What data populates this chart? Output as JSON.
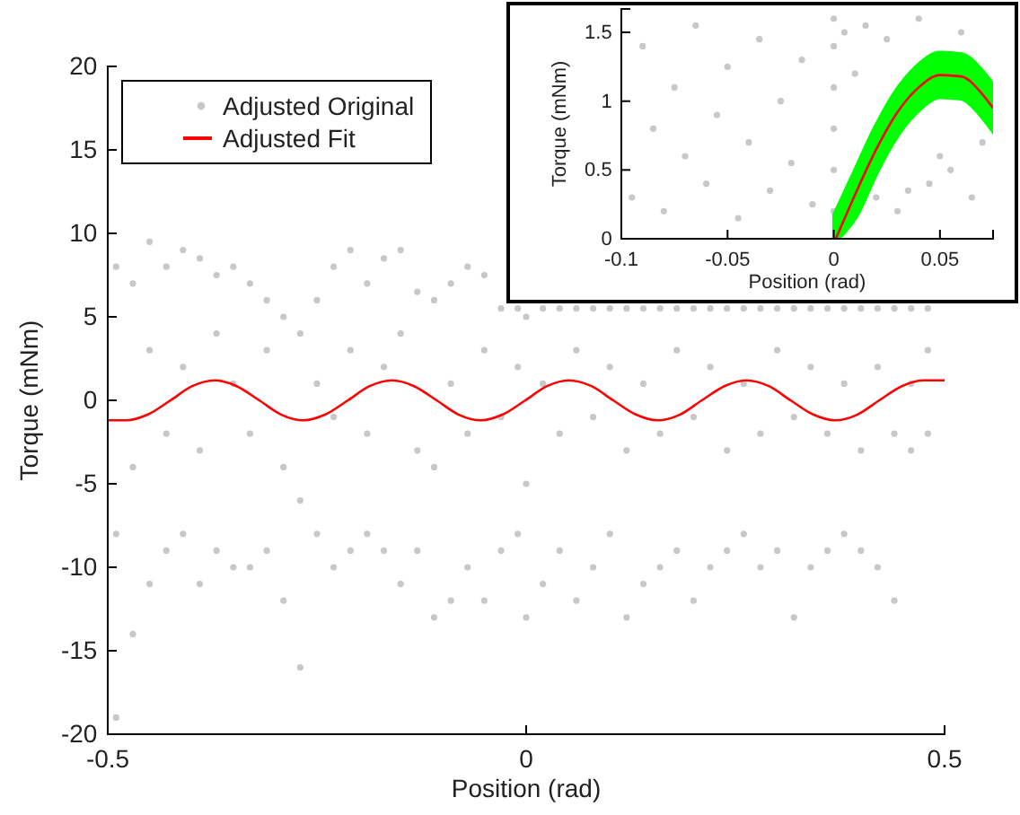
{
  "chart_data": [
    {
      "type": "scatter",
      "xlabel": "Position (rad)",
      "ylabel": "Torque (mNm)",
      "xlim": [
        -0.5,
        0.5
      ],
      "ylim": [
        -20,
        20
      ],
      "xticks": [
        -0.5,
        0,
        0.5
      ],
      "yticks": [
        -20,
        -15,
        -10,
        -5,
        0,
        5,
        10,
        15,
        20
      ],
      "legend": "top left",
      "grid": false,
      "series": [
        {
          "name": "Adjusted Original",
          "type": "scatter",
          "color": "#c8c8c8",
          "x": [
            -0.49,
            -0.49,
            -0.49,
            -0.47,
            -0.47,
            -0.47,
            -0.45,
            -0.45,
            -0.45,
            -0.43,
            -0.43,
            -0.43,
            -0.41,
            -0.41,
            -0.41,
            -0.39,
            -0.39,
            -0.39,
            -0.37,
            -0.37,
            -0.37,
            -0.35,
            -0.35,
            -0.35,
            -0.33,
            -0.33,
            -0.33,
            -0.31,
            -0.31,
            -0.31,
            -0.29,
            -0.29,
            -0.29,
            -0.27,
            -0.27,
            -0.27,
            -0.25,
            -0.25,
            -0.25,
            -0.23,
            -0.23,
            -0.23,
            -0.21,
            -0.21,
            -0.21,
            -0.19,
            -0.19,
            -0.19,
            -0.17,
            -0.17,
            -0.17,
            -0.15,
            -0.15,
            -0.15,
            -0.13,
            -0.13,
            -0.13,
            -0.11,
            -0.11,
            -0.11,
            -0.09,
            -0.09,
            -0.09,
            -0.07,
            -0.07,
            -0.07,
            -0.05,
            -0.05,
            -0.05,
            -0.03,
            -0.03,
            -0.03,
            -0.01,
            -0.01,
            -0.01,
            0,
            0,
            0,
            0.02,
            0.02,
            0.02,
            0.04,
            0.04,
            0.04,
            0.06,
            0.06,
            0.06,
            0.08,
            0.08,
            0.08,
            0.1,
            0.1,
            0.1,
            0.12,
            0.12,
            0.12,
            0.14,
            0.14,
            0.14,
            0.16,
            0.16,
            0.16,
            0.18,
            0.18,
            0.18,
            0.2,
            0.2,
            0.2,
            0.22,
            0.22,
            0.22,
            0.24,
            0.24,
            0.24,
            0.26,
            0.26,
            0.26,
            0.28,
            0.28,
            0.28,
            0.3,
            0.3,
            0.3,
            0.32,
            0.32,
            0.32,
            0.34,
            0.34,
            0.34,
            0.36,
            0.36,
            0.36,
            0.38,
            0.38,
            0.38,
            0.4,
            0.4,
            0.4,
            0.42,
            0.42,
            0.42,
            0.44,
            0.44,
            0.44,
            0.46,
            0.46,
            0.46,
            0.48,
            0.48,
            0.48
          ],
          "values": [
            8,
            -19,
            -8,
            7,
            -14,
            -4,
            9.5,
            -11,
            3,
            8,
            -9,
            -2,
            9,
            -8,
            2,
            8.5,
            -11,
            -3,
            7.5,
            -9,
            4,
            8,
            -10,
            1,
            7,
            -10,
            -2,
            6,
            -9,
            3,
            5,
            -12,
            -4,
            4,
            -16,
            -6,
            6,
            -8,
            1,
            8,
            -10,
            -1,
            9,
            -9,
            3,
            7,
            -8,
            -2,
            8.5,
            -9,
            2,
            9,
            -11,
            4,
            6.5,
            -9,
            -3,
            6,
            -13,
            -4,
            7,
            -12,
            1,
            8,
            -10,
            -2,
            7.5,
            -12,
            3,
            5.5,
            -9,
            -1,
            5.5,
            -8,
            2,
            5,
            -13,
            -5,
            5.5,
            -11,
            1,
            5.5,
            -9,
            -2,
            5.5,
            -12,
            3,
            5.5,
            -10,
            -1,
            5.5,
            -8,
            2,
            5.5,
            -13,
            -3,
            5.5,
            -11,
            1,
            5.5,
            -10,
            -2,
            5.5,
            -9,
            3,
            5.5,
            -12,
            -1,
            5.5,
            -10,
            2,
            5.5,
            -9,
            -3,
            5.5,
            -8,
            1,
            5.5,
            -10,
            -2,
            5.5,
            -9,
            3,
            5.5,
            -13,
            -1,
            5.5,
            -10,
            2,
            5.5,
            -9,
            -2,
            5.5,
            -8,
            1,
            5.5,
            -9,
            -3,
            5.5,
            -10,
            2,
            5.5,
            -12,
            -2,
            5.5,
            -3,
            1,
            5.5,
            -2,
            3
          ]
        },
        {
          "name": "Adjusted Fit",
          "type": "line",
          "color": "#ff0000",
          "x": [
            -0.5,
            -0.478,
            -0.452,
            -0.425,
            -0.399,
            -0.372,
            -0.346,
            -0.319,
            -0.293,
            -0.266,
            -0.24,
            -0.213,
            -0.187,
            -0.16,
            -0.134,
            -0.107,
            -0.081,
            -0.054,
            -0.028,
            -0.001,
            0.025,
            0.051,
            0.078,
            0.104,
            0.131,
            0.157,
            0.184,
            0.21,
            0.237,
            0.263,
            0.29,
            0.316,
            0.343,
            0.369,
            0.396,
            0.422,
            0.449,
            0.475,
            0.5
          ],
          "values": [
            -1.2,
            -1.2,
            -0.85,
            0,
            0.85,
            1.2,
            0.85,
            0,
            -0.85,
            -1.2,
            -0.85,
            0,
            0.85,
            1.2,
            0.85,
            0,
            -0.85,
            -1.2,
            -0.85,
            0,
            0.85,
            1.2,
            0.85,
            0,
            -0.85,
            -1.2,
            -0.85,
            0,
            0.85,
            1.2,
            0.85,
            0,
            -0.85,
            -1.2,
            -0.85,
            0,
            0.85,
            1.2,
            1.2
          ]
        }
      ]
    },
    {
      "type": "scatter",
      "xlabel": "Position (rad)",
      "ylabel": "Torque (mNm)",
      "xlim": [
        -0.1,
        0.075
      ],
      "ylim": [
        0,
        1.67
      ],
      "xticks": [
        -0.1,
        -0.05,
        0,
        0.05
      ],
      "yticks": [
        0,
        0.5,
        1,
        1.5
      ],
      "legend": false,
      "grid": false,
      "series": [
        {
          "type": "scatter",
          "color": "#c8c8c8",
          "x": [
            -0.095,
            -0.09,
            -0.085,
            -0.08,
            -0.075,
            -0.07,
            -0.065,
            -0.06,
            -0.055,
            -0.05,
            -0.045,
            -0.04,
            -0.035,
            -0.03,
            -0.025,
            -0.02,
            -0.015,
            -0.01,
            0,
            0,
            0,
            0,
            0,
            0,
            0.005,
            0.01,
            0.015,
            0.02,
            0.025,
            0.03,
            0.035,
            0.04,
            0.045,
            0.05,
            0.055,
            0.06,
            0.065,
            0.07
          ],
          "values": [
            0.3,
            1.4,
            0.8,
            0.2,
            1.1,
            0.6,
            1.55,
            0.4,
            0.9,
            1.25,
            0.15,
            0.7,
            1.45,
            0.35,
            1,
            0.55,
            1.3,
            0.25,
            0.2,
            0.5,
            0.8,
            1.1,
            1.4,
            1.6,
            1.5,
            1.2,
            1.55,
            0.3,
            1.45,
            0.2,
            0.35,
            1.6,
            0.4,
            0.6,
            0.5,
            1.5,
            0.3,
            0.7
          ]
        },
        {
          "type": "line",
          "color": "#ff0000",
          "x": [
            0.001,
            0.01,
            0.02,
            0.03,
            0.04,
            0.05,
            0.06,
            0.07,
            0.075
          ],
          "values": [
            0,
            0.32,
            0.65,
            0.92,
            1.1,
            1.19,
            1.18,
            1.05,
            0.95
          ],
          "lower": [
            0,
            0.17,
            0.5,
            0.77,
            0.95,
            1.04,
            1.03,
            0.9,
            0.8
          ],
          "upper": [
            0.17,
            0.47,
            0.8,
            1.07,
            1.25,
            1.34,
            1.33,
            1.2,
            1.1
          ]
        }
      ]
    }
  ]
}
